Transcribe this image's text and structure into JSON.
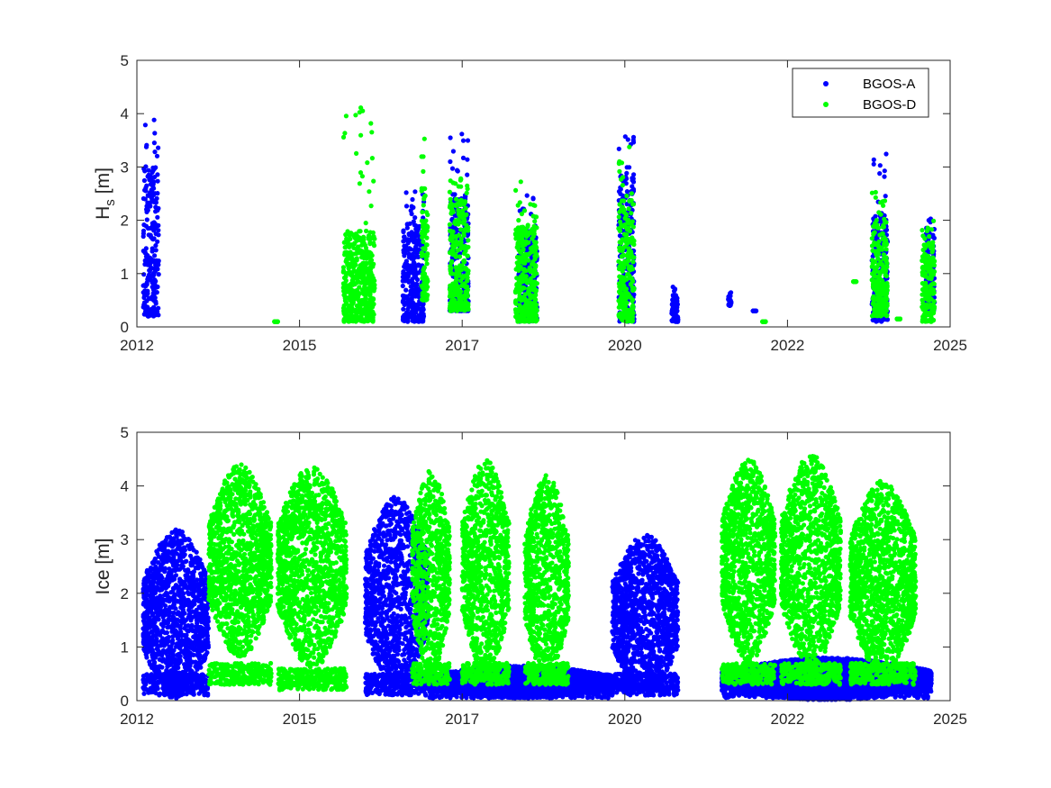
{
  "chart_data": [
    {
      "type": "scatter",
      "xlabel": "",
      "ylabel": "H",
      "ylabel_sub": "s",
      "ylabel_unit": "[m]",
      "xlim": [
        2012,
        2025
      ],
      "ylim": [
        0,
        5
      ],
      "xticks": [
        "2012",
        "2015",
        "2017",
        "2020",
        "2022",
        "2025"
      ],
      "yticks": [
        "0",
        "1",
        "2",
        "3",
        "4",
        "5"
      ],
      "grid": false,
      "legend": {
        "position": "top-right",
        "entries": [
          {
            "name": "BGOS-A",
            "color": "#0000ff"
          },
          {
            "name": "BGOS-D",
            "color": "#00ff00"
          }
        ]
      },
      "series": [
        {
          "name": "BGOS-A",
          "color": "#0000ff",
          "clusters": [
            {
              "x_start": 2012.1,
              "x_end": 2012.35,
              "y_min": 0.2,
              "y_max": 3.0,
              "y_peak": 3.95
            },
            {
              "x_start": 2016.25,
              "x_end": 2016.6,
              "y_min": 0.1,
              "y_max": 2.0,
              "y_peak": 2.6
            },
            {
              "x_start": 2017.0,
              "x_end": 2017.3,
              "y_min": 0.3,
              "y_max": 2.5,
              "y_peak": 3.7
            },
            {
              "x_start": 2018.1,
              "x_end": 2018.4,
              "y_min": 0.1,
              "y_max": 1.8,
              "y_peak": 2.6
            },
            {
              "x_start": 2019.7,
              "x_end": 2019.95,
              "y_min": 0.1,
              "y_max": 2.9,
              "y_peak": 3.6
            },
            {
              "x_start": 2020.55,
              "x_end": 2020.65,
              "y_min": 0.1,
              "y_max": 0.6,
              "y_peak": 0.75
            },
            {
              "x_start": 2021.45,
              "x_end": 2021.5,
              "y_min": 0.4,
              "y_max": 0.6,
              "y_peak": 0.65
            },
            {
              "x_start": 2021.85,
              "x_end": 2021.9,
              "y_min": 0.3,
              "y_max": 0.3,
              "y_peak": 0.3
            },
            {
              "x_start": 2023.75,
              "x_end": 2024.0,
              "y_min": 0.1,
              "y_max": 2.1,
              "y_peak": 3.25
            },
            {
              "x_start": 2024.6,
              "x_end": 2024.75,
              "y_min": 0.3,
              "y_max": 1.8,
              "y_peak": 2.05
            }
          ]
        },
        {
          "name": "BGOS-D",
          "color": "#00ff00",
          "clusters": [
            {
              "x_start": 2014.2,
              "x_end": 2014.25,
              "y_min": 0.1,
              "y_max": 0.1,
              "y_peak": 0.1
            },
            {
              "x_start": 2015.3,
              "x_end": 2015.8,
              "y_min": 0.1,
              "y_max": 1.8,
              "y_peak": 4.2
            },
            {
              "x_start": 2016.55,
              "x_end": 2016.65,
              "y_min": 0.5,
              "y_max": 2.6,
              "y_peak": 3.6
            },
            {
              "x_start": 2017.0,
              "x_end": 2017.3,
              "y_min": 0.3,
              "y_max": 2.4,
              "y_peak": 2.9
            },
            {
              "x_start": 2018.05,
              "x_end": 2018.4,
              "y_min": 0.1,
              "y_max": 1.9,
              "y_peak": 3.05
            },
            {
              "x_start": 2019.7,
              "x_end": 2019.95,
              "y_min": 0.1,
              "y_max": 2.4,
              "y_peak": 3.75
            },
            {
              "x_start": 2022.0,
              "x_end": 2022.05,
              "y_min": 0.1,
              "y_max": 0.1,
              "y_peak": 0.1
            },
            {
              "x_start": 2023.45,
              "x_end": 2023.5,
              "y_min": 0.85,
              "y_max": 0.85,
              "y_peak": 0.85
            },
            {
              "x_start": 2023.75,
              "x_end": 2024.0,
              "y_min": 0.2,
              "y_max": 2.0,
              "y_peak": 2.55
            },
            {
              "x_start": 2024.15,
              "x_end": 2024.2,
              "y_min": 0.15,
              "y_max": 0.15,
              "y_peak": 0.15
            },
            {
              "x_start": 2024.55,
              "x_end": 2024.75,
              "y_min": 0.1,
              "y_max": 1.6,
              "y_peak": 2.0
            }
          ]
        }
      ]
    },
    {
      "type": "scatter",
      "xlabel": "",
      "ylabel": "Ice [m]",
      "xlim": [
        2012,
        2025
      ],
      "ylim": [
        0,
        5
      ],
      "xticks": [
        "2012",
        "2015",
        "2017",
        "2020",
        "2022",
        "2025"
      ],
      "yticks": [
        "0",
        "1",
        "2",
        "3",
        "4",
        "5"
      ],
      "grid": false,
      "series": [
        {
          "name": "BGOS-A",
          "color": "#0000ff",
          "seasons": [
            {
              "x_start": 2012.1,
              "x_end": 2013.15,
              "y_center": 1.6,
              "y_spread": 1.6,
              "y_floor": 0.1
            },
            {
              "x_start": 2015.65,
              "x_end": 2016.65,
              "y_center": 2.0,
              "y_spread": 1.8,
              "y_floor": 0.1
            },
            {
              "x_start": 2016.65,
              "x_end": 2019.6,
              "y_center": 0.35,
              "y_spread": 0.3,
              "y_floor": 0.05
            },
            {
              "x_start": 2019.6,
              "x_end": 2020.65,
              "y_center": 1.6,
              "y_spread": 1.5,
              "y_floor": 0.1
            },
            {
              "x_start": 2021.35,
              "x_end": 2024.7,
              "y_center": 0.4,
              "y_spread": 0.4,
              "y_floor": 0.05
            }
          ]
        },
        {
          "name": "BGOS-D",
          "color": "#00ff00",
          "seasons": [
            {
              "x_start": 2013.15,
              "x_end": 2014.15,
              "y_center": 2.6,
              "y_spread": 1.8,
              "y_floor": 0.3
            },
            {
              "x_start": 2014.25,
              "x_end": 2015.35,
              "y_center": 2.5,
              "y_spread": 1.9,
              "y_floor": 0.2
            },
            {
              "x_start": 2016.4,
              "x_end": 2017.0,
              "y_center": 2.4,
              "y_spread": 1.9,
              "y_floor": 0.3
            },
            {
              "x_start": 2017.2,
              "x_end": 2017.95,
              "y_center": 2.5,
              "y_spread": 2.0,
              "y_floor": 0.3
            },
            {
              "x_start": 2018.2,
              "x_end": 2018.9,
              "y_center": 2.3,
              "y_spread": 1.9,
              "y_floor": 0.3
            },
            {
              "x_start": 2021.35,
              "x_end": 2022.2,
              "y_center": 2.6,
              "y_spread": 1.9,
              "y_floor": 0.3
            },
            {
              "x_start": 2022.3,
              "x_end": 2023.25,
              "y_center": 2.6,
              "y_spread": 2.0,
              "y_floor": 0.3
            },
            {
              "x_start": 2023.4,
              "x_end": 2024.45,
              "y_center": 2.3,
              "y_spread": 1.8,
              "y_floor": 0.3
            }
          ]
        }
      ]
    }
  ]
}
